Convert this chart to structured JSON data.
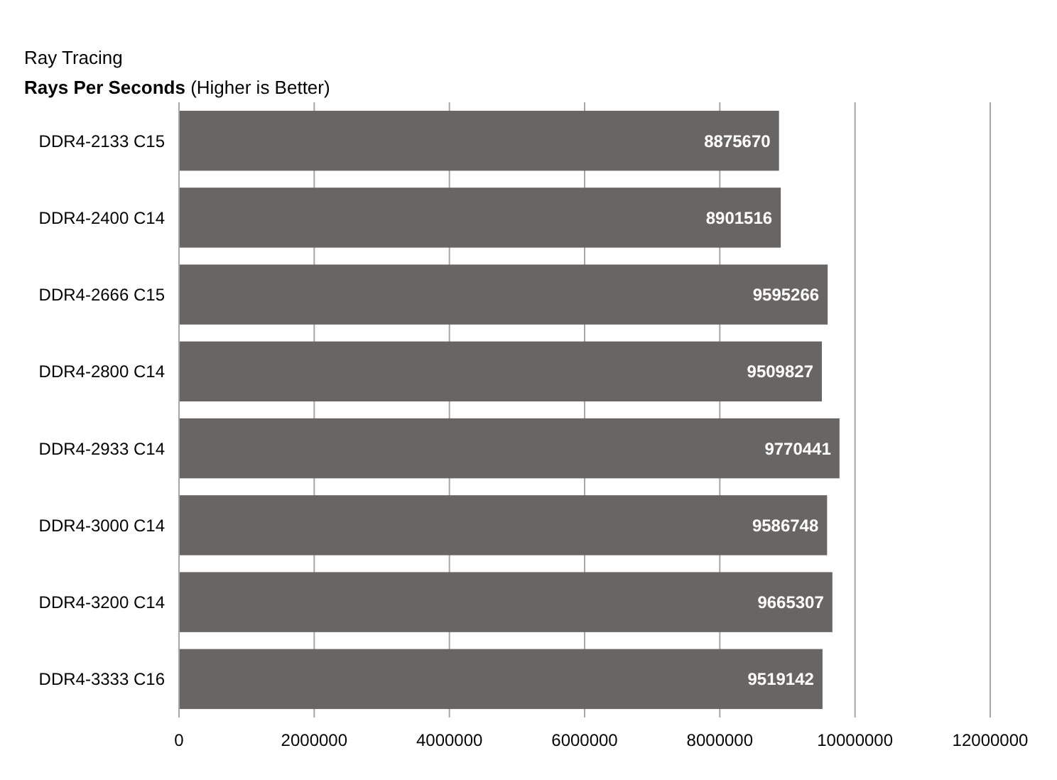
{
  "chart_data": {
    "type": "bar",
    "orientation": "horizontal",
    "title": "Ray Tracing",
    "subtitle": "Rays Per Seconds (Higher is Better)",
    "categories": [
      "DDR4-2133 C15",
      "DDR4-2400 C14",
      "DDR4-2666 C15",
      "DDR4-2800 C14",
      "DDR4-2933 C14",
      "DDR4-3000 C14",
      "DDR4-3200 C14",
      "DDR4-3333 C16"
    ],
    "values": [
      8875670,
      8901516,
      9595266,
      9509827,
      9770441,
      9586748,
      9665307,
      9519142
    ],
    "color": "#686664",
    "xlim": [
      0,
      12000000
    ],
    "xticks": [
      0,
      2000000,
      4000000,
      6000000,
      8000000,
      10000000,
      12000000
    ],
    "grid": "x",
    "data_labels": true
  }
}
